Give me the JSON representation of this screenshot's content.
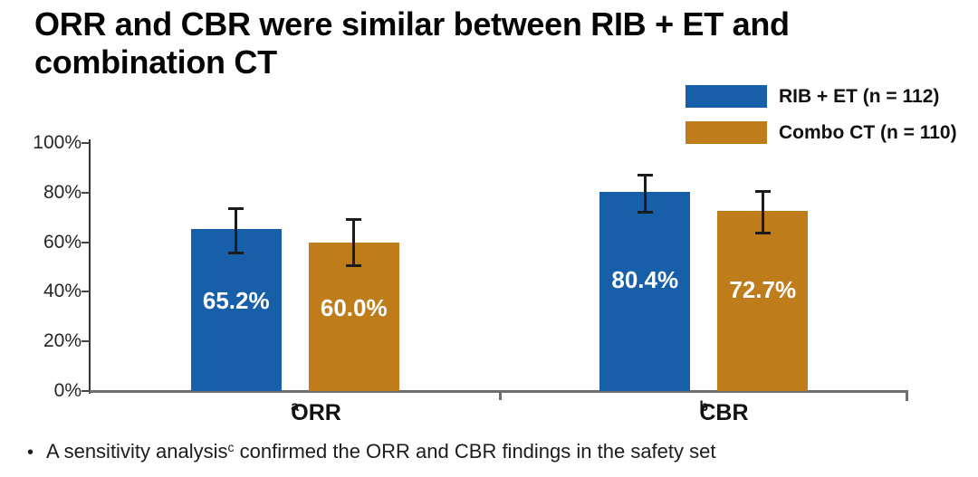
{
  "slide": {
    "title_lines": [
      "ORR and CBR were similar between RIB + ET and",
      "combination CT"
    ],
    "footnote": {
      "bullet": "•",
      "text_prefix": "A sensitivity analysis",
      "text_superscript": "c",
      "text_suffix": " confirmed the ORR and CBR findings in the safety set"
    }
  },
  "chart_data": {
    "type": "bar",
    "title": "",
    "xlabel": "",
    "ylabel": "",
    "categories": [
      "ORR",
      "CBR"
    ],
    "category_superscripts": [
      "a",
      "b"
    ],
    "series": [
      {
        "name": "RIB + ET (n = 112)",
        "color": "#175FA9",
        "values": [
          65.2,
          80.4
        ],
        "data_labels": [
          "65.2%",
          "80.4%"
        ],
        "error_low": [
          55.6,
          71.8
        ],
        "error_high": [
          73.9,
          87.3
        ]
      },
      {
        "name": "Combo CT (n = 110)",
        "color": "#BE7C1B",
        "values": [
          60.0,
          72.7
        ],
        "data_labels": [
          "60.0%",
          "72.7%"
        ],
        "error_low": [
          50.2,
          63.4
        ],
        "error_high": [
          69.2,
          80.8
        ]
      }
    ],
    "ylim": [
      0,
      100
    ],
    "ytick_labels": [
      "0%",
      "20%",
      "40%",
      "60%",
      "80%",
      "100%"
    ],
    "grid": false,
    "error_bars": true,
    "legend_position": "top-right"
  },
  "colors": {
    "bar_blue": "#175FA9",
    "bar_orange": "#BE7C1B",
    "axis_y_line": "#333333",
    "axis_x_line": "#6e6e6e",
    "tick_mark": "#444444",
    "error_bar": "#1c1c1c",
    "data_label_text": "#FFFFFF",
    "title_text": "#050505",
    "body_text": "#1c1c1c"
  }
}
